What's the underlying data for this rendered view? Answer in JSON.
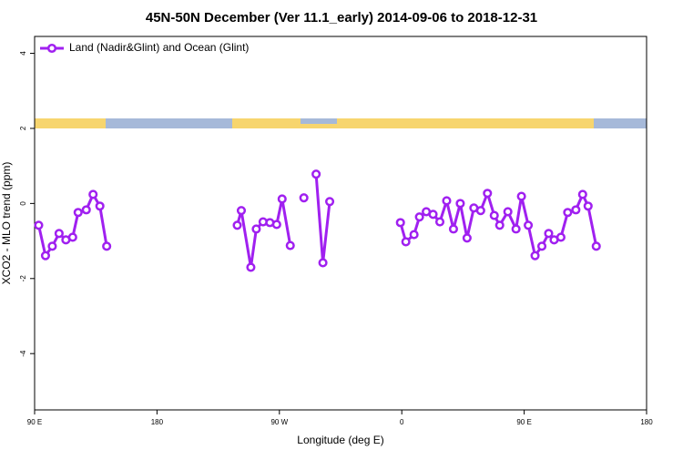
{
  "chart_data": {
    "type": "line",
    "title": "45N-50N December (Ver 11.1_early)   2014-09-06 to 2018-12-31",
    "xlabel": "Longitude (deg E)",
    "ylabel": "XCO2 - MLO trend (ppm)",
    "xlim": [
      90,
      540
    ],
    "ylim": [
      -5.5,
      4.45
    ],
    "xticks": [
      {
        "value": 90,
        "label": "90 E"
      },
      180,
      {
        "value": 270,
        "label": "90 W"
      },
      {
        "value": 360,
        "label": "0"
      },
      {
        "value": 450,
        "label": "90 E"
      },
      {
        "value": 540,
        "label": "180"
      }
    ],
    "yticks": [
      -4,
      -2,
      0,
      2,
      4
    ],
    "grid": false,
    "legend": "top-left",
    "series": [
      {
        "name": "Land (Nadir&Glint) and Ocean (Glint)",
        "color": "#a020f0",
        "x": [
          93,
          98,
          103,
          108,
          113,
          118,
          122,
          128,
          133,
          138,
          143,
          null,
          239,
          242,
          249,
          253,
          258,
          263,
          268,
          272,
          278,
          null,
          288,
          null,
          297,
          302,
          307,
          null,
          359,
          363,
          369,
          373,
          378,
          383,
          388,
          393,
          398,
          403,
          408,
          413,
          418,
          423,
          428,
          432,
          438,
          444,
          448,
          453,
          458,
          463,
          468,
          472,
          477,
          482,
          488,
          493,
          497,
          503
        ],
        "values": [
          -0.58,
          -1.39,
          -1.14,
          -0.8,
          -0.97,
          -0.9,
          -0.24,
          -0.17,
          0.24,
          -0.07,
          -1.14,
          null,
          -0.58,
          -0.19,
          -1.7,
          -0.68,
          -0.49,
          -0.51,
          -0.56,
          0.12,
          -1.12,
          null,
          0.15,
          null,
          0.78,
          -1.58,
          0.05,
          null,
          -0.51,
          -1.02,
          -0.83,
          -0.36,
          -0.22,
          -0.29,
          -0.49,
          0.07,
          -0.68,
          0,
          -0.92,
          -0.12,
          -0.19,
          0.27,
          -0.32,
          -0.58,
          -0.22,
          -0.68,
          0.19,
          -0.58,
          -1.39,
          -1.14,
          -0.8,
          -0.97,
          -0.9,
          -0.24,
          -0.17,
          0.24,
          -0.07,
          -1.14
        ]
      }
    ]
  }
}
